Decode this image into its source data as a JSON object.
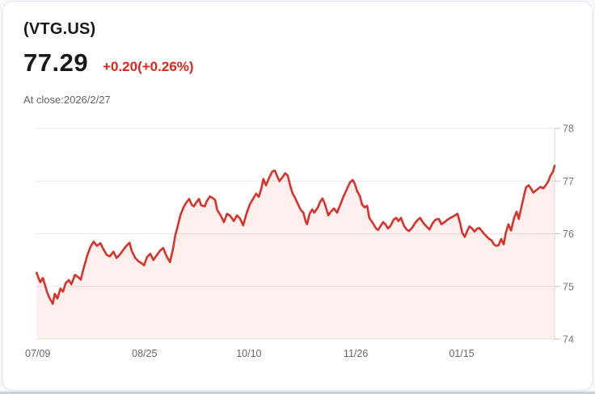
{
  "header": {
    "symbol": "(VTG.US)",
    "price": "77.29",
    "change": "+0.20(+0.26%)",
    "at_close": "At close:2026/2/27"
  },
  "colors": {
    "header_change_red": "#e1251c",
    "line_red": "#d7332b",
    "area_fill": "rgba(215,51,43,0.08)",
    "grid": "#e7e7e7",
    "axis": "#dcdcdc",
    "tick": "#c2c2c2",
    "axis_label": "#757575",
    "muted_text": "#636363"
  },
  "chart_data": {
    "type": "area",
    "title": "(VTG.US) intraday-close price history",
    "ylabel": "",
    "xlabel": "",
    "ylim": [
      74,
      78
    ],
    "y_ticks": [
      74,
      75,
      76,
      77,
      78
    ],
    "grid": "horizontal",
    "legend": null,
    "last_close": 77.29,
    "x_ticks": [
      {
        "label": "07/09",
        "f": 0.003
      },
      {
        "label": "08/25",
        "f": 0.21
      },
      {
        "label": "10/10",
        "f": 0.411
      },
      {
        "label": "11/26",
        "f": 0.617
      },
      {
        "label": "01/15",
        "f": 0.821
      }
    ],
    "points": [
      [
        0.002,
        75.26
      ],
      [
        0.006,
        75.15
      ],
      [
        0.009,
        75.08
      ],
      [
        0.014,
        75.16
      ],
      [
        0.019,
        75.0
      ],
      [
        0.022,
        74.9
      ],
      [
        0.026,
        74.8
      ],
      [
        0.033,
        74.67
      ],
      [
        0.037,
        74.86
      ],
      [
        0.042,
        74.77
      ],
      [
        0.048,
        74.96
      ],
      [
        0.053,
        74.9
      ],
      [
        0.058,
        75.06
      ],
      [
        0.064,
        75.12
      ],
      [
        0.069,
        75.04
      ],
      [
        0.076,
        75.22
      ],
      [
        0.083,
        75.17
      ],
      [
        0.087,
        75.13
      ],
      [
        0.093,
        75.36
      ],
      [
        0.1,
        75.6
      ],
      [
        0.106,
        75.76
      ],
      [
        0.112,
        75.85
      ],
      [
        0.118,
        75.77
      ],
      [
        0.125,
        75.82
      ],
      [
        0.131,
        75.7
      ],
      [
        0.137,
        75.6
      ],
      [
        0.143,
        75.57
      ],
      [
        0.15,
        75.66
      ],
      [
        0.156,
        75.54
      ],
      [
        0.162,
        75.6
      ],
      [
        0.168,
        75.68
      ],
      [
        0.174,
        75.76
      ],
      [
        0.181,
        75.83
      ],
      [
        0.185,
        75.68
      ],
      [
        0.192,
        75.54
      ],
      [
        0.198,
        75.48
      ],
      [
        0.204,
        75.44
      ],
      [
        0.209,
        75.4
      ],
      [
        0.215,
        75.56
      ],
      [
        0.221,
        75.62
      ],
      [
        0.227,
        75.5
      ],
      [
        0.234,
        75.6
      ],
      [
        0.24,
        75.68
      ],
      [
        0.246,
        75.73
      ],
      [
        0.252,
        75.58
      ],
      [
        0.259,
        75.46
      ],
      [
        0.265,
        75.72
      ],
      [
        0.269,
        75.96
      ],
      [
        0.274,
        76.15
      ],
      [
        0.279,
        76.35
      ],
      [
        0.285,
        76.5
      ],
      [
        0.291,
        76.6
      ],
      [
        0.296,
        76.66
      ],
      [
        0.301,
        76.55
      ],
      [
        0.305,
        76.52
      ],
      [
        0.31,
        76.6
      ],
      [
        0.315,
        76.66
      ],
      [
        0.319,
        76.54
      ],
      [
        0.326,
        76.52
      ],
      [
        0.33,
        76.62
      ],
      [
        0.336,
        76.71
      ],
      [
        0.341,
        76.68
      ],
      [
        0.346,
        76.64
      ],
      [
        0.35,
        76.45
      ],
      [
        0.357,
        76.34
      ],
      [
        0.363,
        76.22
      ],
      [
        0.369,
        76.38
      ],
      [
        0.375,
        76.34
      ],
      [
        0.382,
        76.24
      ],
      [
        0.388,
        76.35
      ],
      [
        0.394,
        76.29
      ],
      [
        0.4,
        76.16
      ],
      [
        0.407,
        76.4
      ],
      [
        0.413,
        76.56
      ],
      [
        0.419,
        76.66
      ],
      [
        0.425,
        76.76
      ],
      [
        0.43,
        76.7
      ],
      [
        0.435,
        76.86
      ],
      [
        0.439,
        77.04
      ],
      [
        0.444,
        76.92
      ],
      [
        0.45,
        77.06
      ],
      [
        0.456,
        77.18
      ],
      [
        0.461,
        77.2
      ],
      [
        0.466,
        77.08
      ],
      [
        0.47,
        77.0
      ],
      [
        0.477,
        77.09
      ],
      [
        0.481,
        77.15
      ],
      [
        0.486,
        77.1
      ],
      [
        0.491,
        76.9
      ],
      [
        0.495,
        76.77
      ],
      [
        0.5,
        76.68
      ],
      [
        0.506,
        76.55
      ],
      [
        0.511,
        76.45
      ],
      [
        0.516,
        76.4
      ],
      [
        0.52,
        76.25
      ],
      [
        0.523,
        76.18
      ],
      [
        0.528,
        76.38
      ],
      [
        0.533,
        76.46
      ],
      [
        0.537,
        76.4
      ],
      [
        0.544,
        76.5
      ],
      [
        0.548,
        76.6
      ],
      [
        0.553,
        76.67
      ],
      [
        0.558,
        76.55
      ],
      [
        0.564,
        76.35
      ],
      [
        0.569,
        76.42
      ],
      [
        0.575,
        76.48
      ],
      [
        0.581,
        76.4
      ],
      [
        0.587,
        76.55
      ],
      [
        0.593,
        76.7
      ],
      [
        0.6,
        76.85
      ],
      [
        0.606,
        76.98
      ],
      [
        0.611,
        77.02
      ],
      [
        0.615,
        76.95
      ],
      [
        0.62,
        76.8
      ],
      [
        0.625,
        76.71
      ],
      [
        0.629,
        76.56
      ],
      [
        0.634,
        76.5
      ],
      [
        0.639,
        76.53
      ],
      [
        0.643,
        76.3
      ],
      [
        0.65,
        76.2
      ],
      [
        0.656,
        76.1
      ],
      [
        0.66,
        76.07
      ],
      [
        0.665,
        76.15
      ],
      [
        0.67,
        76.22
      ],
      [
        0.674,
        76.18
      ],
      [
        0.679,
        76.1
      ],
      [
        0.684,
        76.15
      ],
      [
        0.69,
        76.27
      ],
      [
        0.695,
        76.3
      ],
      [
        0.699,
        76.24
      ],
      [
        0.704,
        76.3
      ],
      [
        0.71,
        76.15
      ],
      [
        0.715,
        76.08
      ],
      [
        0.72,
        76.05
      ],
      [
        0.726,
        76.12
      ],
      [
        0.731,
        76.2
      ],
      [
        0.737,
        76.27
      ],
      [
        0.741,
        76.3
      ],
      [
        0.746,
        76.22
      ],
      [
        0.752,
        76.15
      ],
      [
        0.759,
        76.08
      ],
      [
        0.765,
        76.2
      ],
      [
        0.771,
        76.27
      ],
      [
        0.777,
        76.28
      ],
      [
        0.782,
        76.18
      ],
      [
        0.788,
        76.22
      ],
      [
        0.793,
        76.26
      ],
      [
        0.799,
        76.3
      ],
      [
        0.805,
        76.33
      ],
      [
        0.81,
        76.36
      ],
      [
        0.813,
        76.38
      ],
      [
        0.818,
        76.2
      ],
      [
        0.822,
        76.02
      ],
      [
        0.827,
        75.94
      ],
      [
        0.832,
        76.06
      ],
      [
        0.836,
        76.14
      ],
      [
        0.841,
        76.1
      ],
      [
        0.846,
        76.04
      ],
      [
        0.85,
        76.09
      ],
      [
        0.855,
        76.11
      ],
      [
        0.86,
        76.05
      ],
      [
        0.864,
        76.0
      ],
      [
        0.869,
        75.95
      ],
      [
        0.874,
        75.9
      ],
      [
        0.878,
        75.88
      ],
      [
        0.883,
        75.8
      ],
      [
        0.888,
        75.77
      ],
      [
        0.892,
        75.78
      ],
      [
        0.897,
        75.9
      ],
      [
        0.902,
        75.8
      ],
      [
        0.906,
        76.02
      ],
      [
        0.911,
        76.18
      ],
      [
        0.916,
        76.06
      ],
      [
        0.922,
        76.3
      ],
      [
        0.927,
        76.42
      ],
      [
        0.931,
        76.28
      ],
      [
        0.936,
        76.5
      ],
      [
        0.941,
        76.72
      ],
      [
        0.945,
        76.88
      ],
      [
        0.95,
        76.92
      ],
      [
        0.955,
        76.85
      ],
      [
        0.959,
        76.78
      ],
      [
        0.964,
        76.82
      ],
      [
        0.969,
        76.86
      ],
      [
        0.973,
        76.89
      ],
      [
        0.978,
        76.86
      ],
      [
        0.983,
        76.92
      ],
      [
        0.988,
        77.0
      ],
      [
        0.992,
        77.1
      ],
      [
        0.997,
        77.18
      ],
      [
        1.0,
        77.29
      ]
    ]
  }
}
